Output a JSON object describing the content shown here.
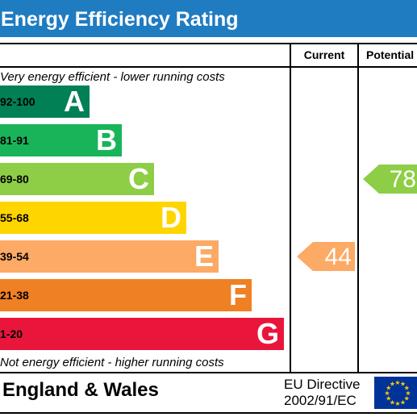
{
  "chart_data": {
    "type": "bar",
    "title": "Energy Efficiency Rating",
    "columns": [
      "Current",
      "Potential"
    ],
    "top_note": "Very energy efficient - lower running costs",
    "bottom_note": "Not energy efficient - higher running costs",
    "bands": [
      {
        "range": "92-100",
        "letter": "A",
        "color": "#008054"
      },
      {
        "range": "81-91",
        "letter": "B",
        "color": "#19b459"
      },
      {
        "range": "69-80",
        "letter": "C",
        "color": "#8dce46"
      },
      {
        "range": "55-68",
        "letter": "D",
        "color": "#ffd500"
      },
      {
        "range": "39-54",
        "letter": "E",
        "color": "#fcaa65"
      },
      {
        "range": "21-38",
        "letter": "F",
        "color": "#ef8023"
      },
      {
        "range": "1-20",
        "letter": "G",
        "color": "#e9153b"
      }
    ],
    "current": {
      "value": 44,
      "band": "E",
      "color": "#fcaa65"
    },
    "potential": {
      "value": 78,
      "band": "C",
      "color": "#8dce46"
    }
  },
  "footer": {
    "country": "England & Wales",
    "directive_line1": "EU Directive",
    "directive_line2": "2002/91/EC",
    "flag_icon": "eu-flag-icon"
  },
  "colors": {
    "header": "#1f7cc1"
  }
}
